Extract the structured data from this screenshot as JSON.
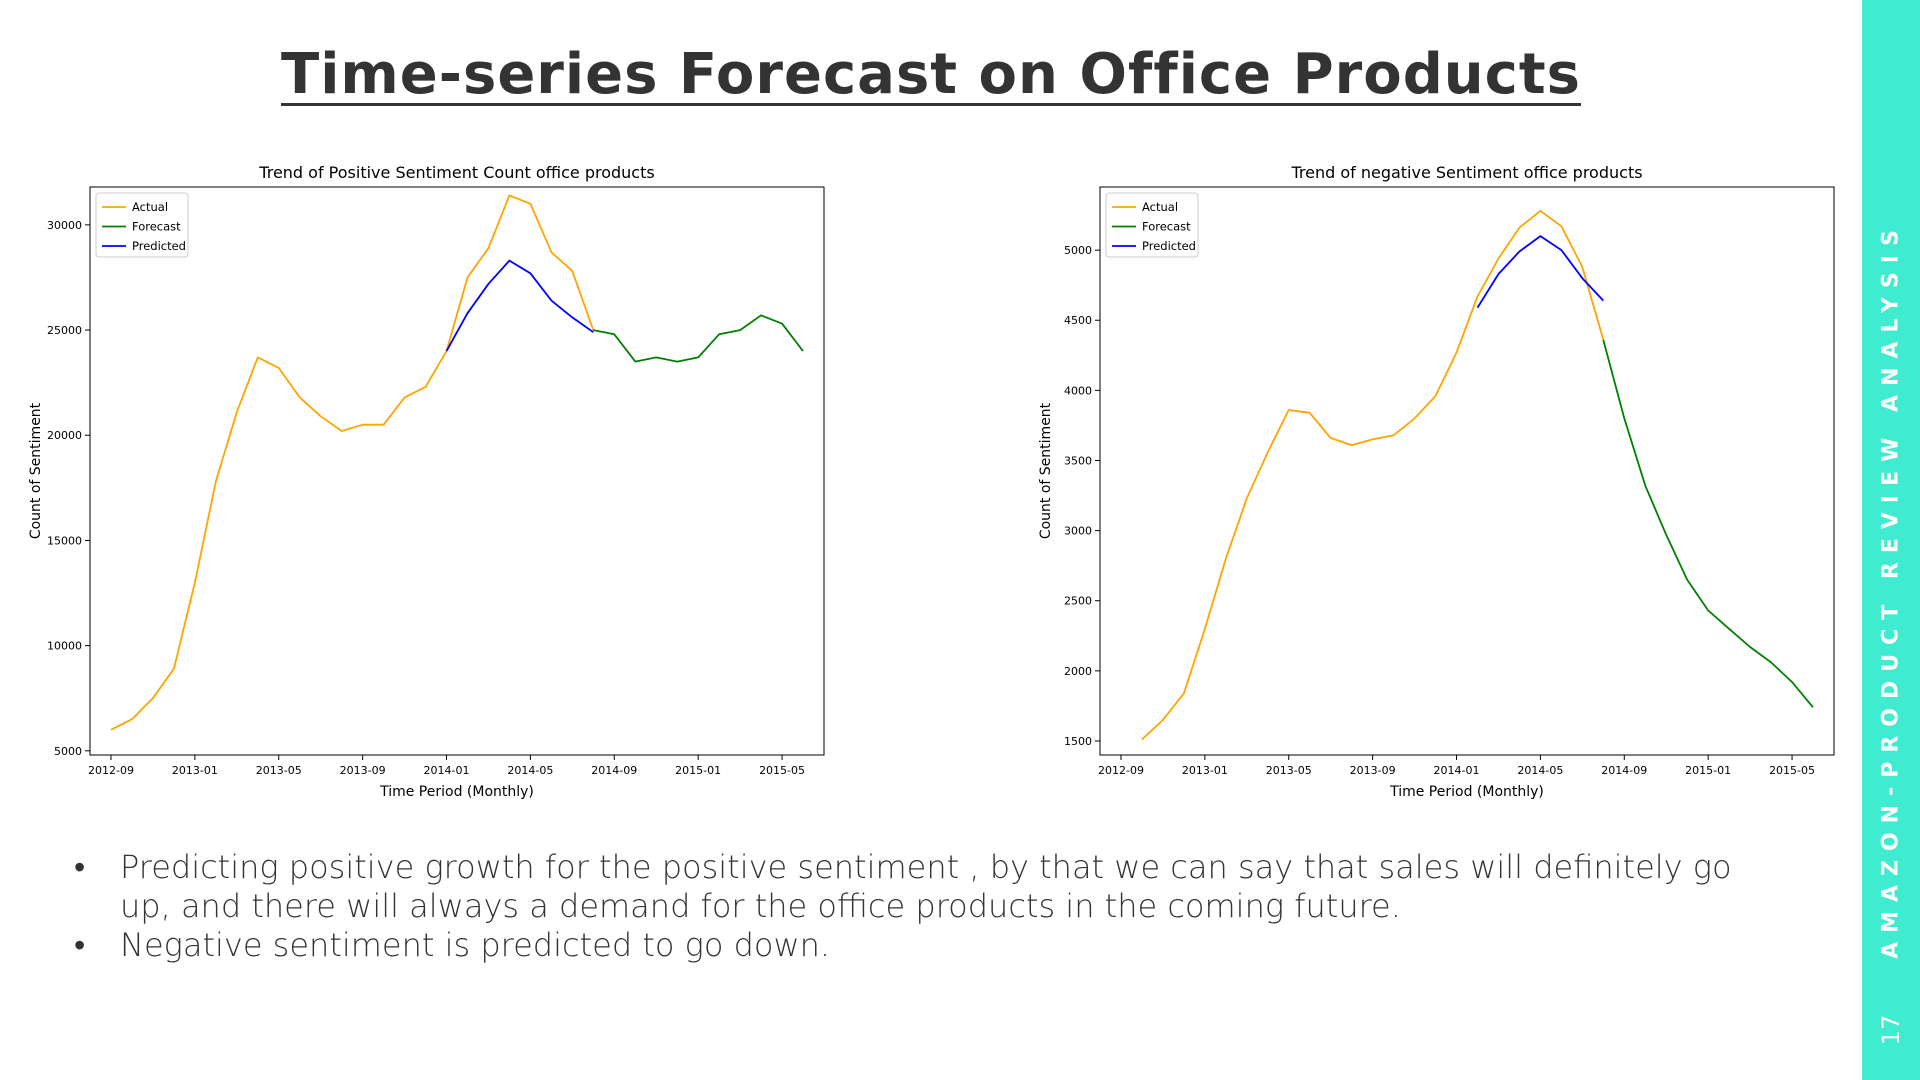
{
  "title": "Time-series Forecast on Office Products",
  "bullets": [
    "Predicting  positive growth for the positive sentiment , by that we can say that sales will definitely go up, and there will always a demand for the office products in the coming future.",
    "Negative sentiment is predicted to go down."
  ],
  "sidebar": {
    "text": "AMAZON-PRODUCT REVIEW ANALYSIS",
    "page_number": "17",
    "color": "#40ecd0"
  },
  "chart_data": [
    {
      "type": "line",
      "title": "Trend of Positive Sentiment Count office products",
      "xlabel": "Time Period (Monthly)",
      "ylabel": "Count of Sentiment",
      "x_ticks": [
        "2012-09",
        "2013-01",
        "2013-05",
        "2013-09",
        "2014-01",
        "2014-05",
        "2014-09",
        "2015-01",
        "2015-05"
      ],
      "y_ticks": [
        5000,
        10000,
        15000,
        20000,
        25000,
        30000
      ],
      "xlim": [
        "2012-08",
        "2015-07"
      ],
      "ylim": [
        4800,
        31800
      ],
      "legend": "top-left",
      "grid": false,
      "series": [
        {
          "name": "Actual",
          "color": "#ffa500",
          "x": [
            "2012-09",
            "2012-10",
            "2012-11",
            "2012-12",
            "2013-01",
            "2013-02",
            "2013-03",
            "2013-04",
            "2013-05",
            "2013-06",
            "2013-07",
            "2013-08",
            "2013-09",
            "2013-10",
            "2013-11",
            "2013-12",
            "2014-01",
            "2014-02",
            "2014-03",
            "2014-04",
            "2014-05",
            "2014-06",
            "2014-07",
            "2014-08"
          ],
          "values": [
            6000,
            6500,
            7500,
            8900,
            13000,
            17800,
            21100,
            23700,
            23200,
            21800,
            20900,
            20200,
            20500,
            20500,
            21800,
            22300,
            24000,
            27500,
            28900,
            31400,
            31000,
            28700,
            27800,
            25000
          ]
        },
        {
          "name": "Forecast",
          "color": "#008000",
          "x": [
            "2014-08",
            "2014-09",
            "2014-10",
            "2014-11",
            "2014-12",
            "2015-01",
            "2015-02",
            "2015-03",
            "2015-04",
            "2015-05",
            "2015-06"
          ],
          "values": [
            25000,
            24800,
            23500,
            23700,
            23500,
            23700,
            24800,
            25000,
            25700,
            25300,
            24000
          ]
        },
        {
          "name": "Predicted",
          "color": "#0000ff",
          "x": [
            "2014-01",
            "2014-02",
            "2014-03",
            "2014-04",
            "2014-05",
            "2014-06",
            "2014-07",
            "2014-08"
          ],
          "values": [
            24000,
            25800,
            27200,
            28300,
            27700,
            26400,
            25600,
            24900
          ]
        }
      ]
    },
    {
      "type": "line",
      "title": "Trend of negative Sentiment office products",
      "xlabel": "Time Period (Monthly)",
      "ylabel": "Count of Sentiment",
      "x_ticks": [
        "2012-09",
        "2013-01",
        "2013-05",
        "2013-09",
        "2014-01",
        "2014-05",
        "2014-09",
        "2015-01",
        "2015-05"
      ],
      "y_ticks": [
        1500,
        2000,
        2500,
        3000,
        3500,
        4000,
        4500,
        5000
      ],
      "xlim": [
        "2012-08",
        "2015-07"
      ],
      "ylim": [
        1400,
        5450
      ],
      "legend": "top-left",
      "grid": false,
      "series": [
        {
          "name": "Actual",
          "color": "#ffa500",
          "x": [
            "2012-10",
            "2012-11",
            "2012-12",
            "2013-01",
            "2013-02",
            "2013-03",
            "2013-04",
            "2013-05",
            "2013-06",
            "2013-07",
            "2013-08",
            "2013-09",
            "2013-10",
            "2013-11",
            "2013-12",
            "2014-01",
            "2014-02",
            "2014-03",
            "2014-04",
            "2014-05",
            "2014-06",
            "2014-07",
            "2014-08"
          ],
          "values": [
            1510,
            1650,
            1840,
            2300,
            2800,
            3230,
            3560,
            3860,
            3840,
            3660,
            3610,
            3650,
            3680,
            3800,
            3960,
            4270,
            4670,
            4940,
            5160,
            5280,
            5170,
            4880,
            4360
          ]
        },
        {
          "name": "Forecast",
          "color": "#008000",
          "x": [
            "2014-08",
            "2014-09",
            "2014-10",
            "2014-11",
            "2014-12",
            "2015-01",
            "2015-02",
            "2015-03",
            "2015-04",
            "2015-05",
            "2015-06"
          ],
          "values": [
            4360,
            3800,
            3320,
            2970,
            2650,
            2430,
            2300,
            2170,
            2060,
            1920,
            1740
          ]
        },
        {
          "name": "Predicted",
          "color": "#0000ff",
          "x": [
            "2014-02",
            "2014-03",
            "2014-04",
            "2014-05",
            "2014-06",
            "2014-07",
            "2014-08"
          ],
          "values": [
            4590,
            4830,
            4990,
            5100,
            5000,
            4800,
            4640
          ]
        }
      ]
    }
  ]
}
